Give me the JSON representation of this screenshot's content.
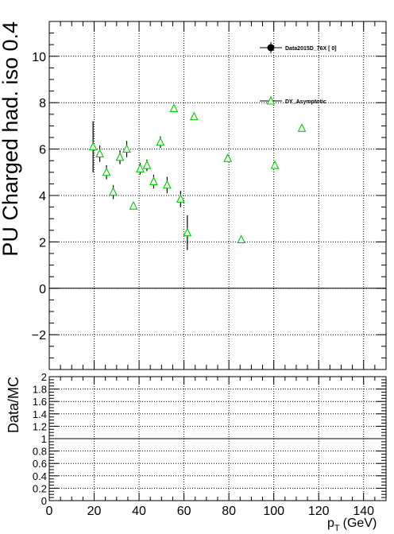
{
  "chart_data": [
    {
      "type": "scatter",
      "ylabel": "PU Charged had. iso 0.4",
      "xlim": [
        0,
        150
      ],
      "ylim": [
        -3.5,
        11.5
      ],
      "yticks": [
        -2,
        0,
        2,
        4,
        6,
        8,
        10
      ],
      "grid": true,
      "legend_position": "top-right",
      "series": [
        {
          "name": "Data2015D_76X [ 0]",
          "marker": "filled-circle",
          "x": [],
          "y": []
        },
        {
          "name": "DY_Asymptotic",
          "marker": "open-triangle",
          "color": "#00cc00",
          "x": [
            19.5,
            22.5,
            25.5,
            28.5,
            31.5,
            34.5,
            37.5,
            40.5,
            43.5,
            46.5,
            49.5,
            52.5,
            55.5,
            58.5,
            61.5,
            64.5,
            79.5,
            85.5,
            100.5,
            112.5
          ],
          "y": [
            6.1,
            5.8,
            5.0,
            4.15,
            5.65,
            6.0,
            3.55,
            5.15,
            5.3,
            4.6,
            6.3,
            4.45,
            7.75,
            3.85,
            2.4,
            7.4,
            5.6,
            2.1,
            5.3,
            6.9
          ],
          "yerr": [
            1.1,
            0.35,
            0.3,
            0.3,
            0.3,
            0.35,
            0.15,
            0.25,
            0.25,
            0.3,
            0.25,
            0.35,
            0.1,
            0.35,
            0.75,
            0.1,
            0.1,
            0.1,
            0.15,
            0.1
          ]
        }
      ]
    },
    {
      "type": "scatter",
      "xlabel": "p_T (GeV)",
      "xlabel_main": "p",
      "xlabel_sub": "T",
      "xlabel_unit": "(GeV)",
      "ylabel": "Data/MC",
      "xlim": [
        0,
        150
      ],
      "ylim": [
        0,
        2
      ],
      "xticks": [
        0,
        20,
        40,
        60,
        80,
        100,
        120,
        140
      ],
      "yticks": [
        0,
        0.2,
        0.4,
        0.6,
        0.8,
        1,
        1.2,
        1.4,
        1.6,
        1.8,
        2
      ],
      "ytick_labels": [
        "0",
        "0.2",
        "0.4",
        "0.6",
        "0.8",
        "1",
        "1.2",
        "1.4",
        "1.6",
        "1.8",
        "2"
      ],
      "grid": true,
      "reference_line": 1,
      "series": []
    }
  ]
}
